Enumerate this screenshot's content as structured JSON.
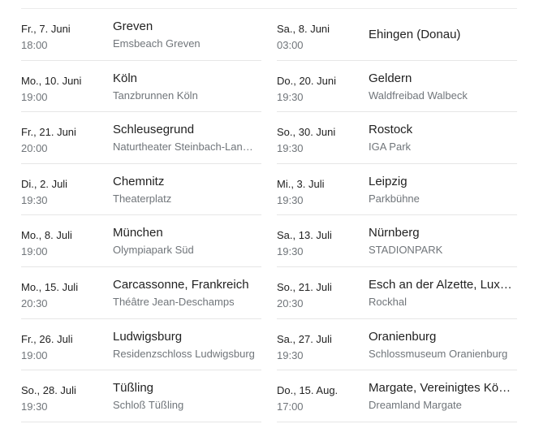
{
  "events": [
    {
      "date": "Fr., 7. Juni",
      "time": "18:00",
      "city": "Greven",
      "venue": "Emsbeach Greven"
    },
    {
      "date": "Sa., 8. Juni",
      "time": "03:00",
      "city": "Ehingen (Donau)",
      "venue": ""
    },
    {
      "date": "Mo., 10. Juni",
      "time": "19:00",
      "city": "Köln",
      "venue": "Tanzbrunnen Köln"
    },
    {
      "date": "Do., 20. Juni",
      "time": "19:30",
      "city": "Geldern",
      "venue": "Waldfreibad Walbeck"
    },
    {
      "date": "Fr., 21. Juni",
      "time": "20:00",
      "city": "Schleusegrund",
      "venue": "Naturtheater Steinbach-Langenbach"
    },
    {
      "date": "So., 30. Juni",
      "time": "19:30",
      "city": "Rostock",
      "venue": "IGA Park"
    },
    {
      "date": "Di., 2. Juli",
      "time": "19:30",
      "city": "Chemnitz",
      "venue": "Theaterplatz"
    },
    {
      "date": "Mi., 3. Juli",
      "time": "19:30",
      "city": "Leipzig",
      "venue": "Parkbühne"
    },
    {
      "date": "Mo., 8. Juli",
      "time": "19:00",
      "city": "München",
      "venue": "Olympiapark Süd"
    },
    {
      "date": "Sa., 13. Juli",
      "time": "19:30",
      "city": "Nürnberg",
      "venue": "STADIONPARK"
    },
    {
      "date": "Mo., 15. Juli",
      "time": "20:30",
      "city": "Carcassonne, Frankreich",
      "venue": "Théâtre Jean-Deschamps"
    },
    {
      "date": "So., 21. Juli",
      "time": "20:30",
      "city": "Esch an der Alzette, Luxemburg",
      "venue": "Rockhal"
    },
    {
      "date": "Fr., 26. Juli",
      "time": "19:00",
      "city": "Ludwigsburg",
      "venue": "Residenzschloss Ludwigsburg"
    },
    {
      "date": "Sa., 27. Juli",
      "time": "19:30",
      "city": "Oranienburg",
      "venue": "Schlossmuseum Oranienburg"
    },
    {
      "date": "So., 28. Juli",
      "time": "19:30",
      "city": "Tüßling",
      "venue": "Schloß Tüßling"
    },
    {
      "date": "Do., 15. Aug.",
      "time": "17:00",
      "city": "Margate, Vereinigtes Königreich",
      "venue": "Dreamland Margate"
    }
  ]
}
